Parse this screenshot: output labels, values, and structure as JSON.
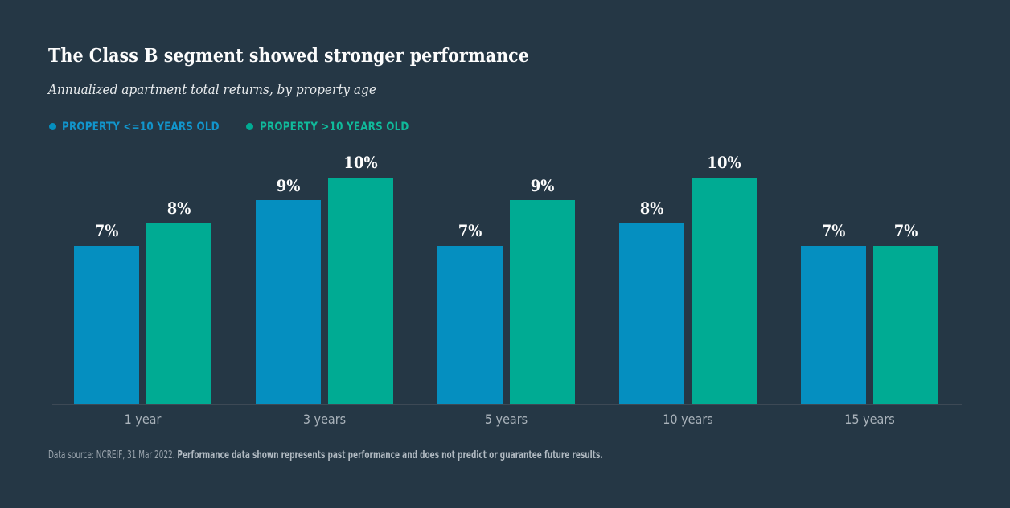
{
  "page": {
    "background_color": "#253745"
  },
  "header": {
    "title": "The Class B segment showed stronger performance",
    "subtitle": "Annualized apartment total returns, by property age"
  },
  "legend": {
    "items": [
      {
        "label": "PROPERTY <=10 YEARS OLD",
        "text_color": "#1295cc",
        "dot_color": "#058fc0"
      },
      {
        "label": "PROPERTY >10 YEARS OLD",
        "text_color": "#10ba9b",
        "dot_color": "#00ab93"
      }
    ]
  },
  "chart_data": {
    "type": "bar",
    "title": "The Class B segment showed stronger performance",
    "subtitle": "Annualized apartment total returns, by property age",
    "categories": [
      "1 year",
      "3 years",
      "5 years",
      "10 years",
      "15 years"
    ],
    "series": [
      {
        "name": "PROPERTY <=10 YEARS OLD",
        "color": "#058fc0",
        "values": [
          7,
          9,
          7,
          8,
          7
        ]
      },
      {
        "name": "PROPERTY >10 YEARS OLD",
        "color": "#00ab93",
        "values": [
          8,
          10,
          9,
          10,
          7
        ]
      }
    ],
    "value_suffix": "%",
    "data_labels": [
      [
        "7%",
        "9%",
        "7%",
        "8%",
        "7%"
      ],
      [
        "8%",
        "10%",
        "9%",
        "10%",
        "7%"
      ]
    ],
    "xlabel": "",
    "ylabel": "",
    "ylim": [
      0,
      10.6
    ],
    "grid": false,
    "legend_position": "top-left"
  },
  "footer": {
    "source": "Data source: NCREIF, 31 Mar 2022.",
    "disclaimer": "Performance data shown represents past performance and does not predict or guarantee future results."
  }
}
